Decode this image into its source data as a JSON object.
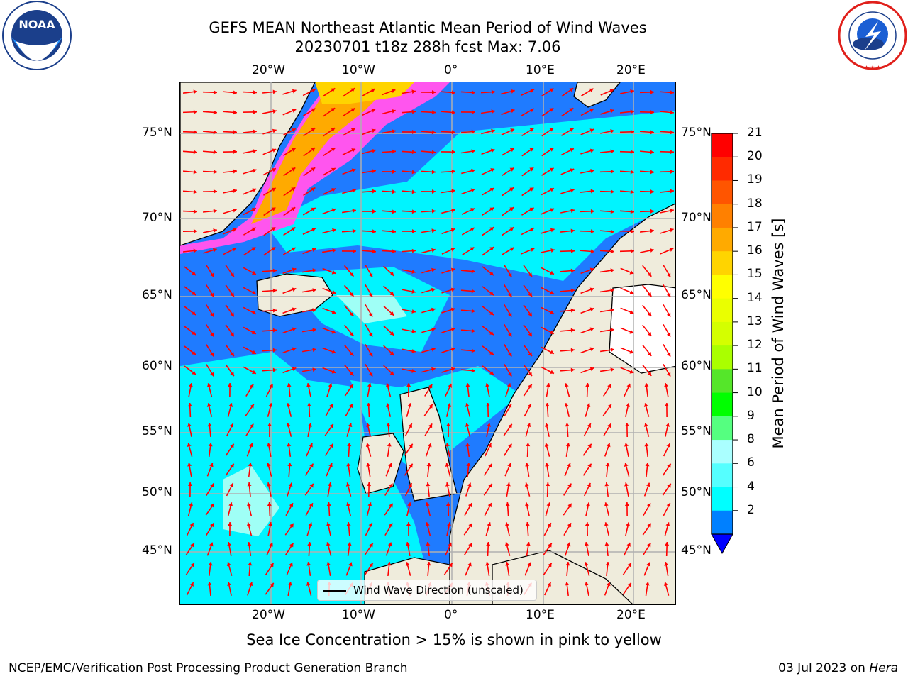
{
  "title": {
    "line1": "GEFS MEAN Northeast Atlantic Mean Period of Wind Waves",
    "line2": "20230701 t18z 288h fcst   Max: 7.06"
  },
  "logos": {
    "noaa_text": "NOAA",
    "noaa_ring": "NATIONAL OCEANIC AND ATMOSPHERIC ADMINISTRATION · U.S. DEPARTMENT OF COMMERCE",
    "nws_ring": "NATIONAL WEATHER SERVICE"
  },
  "map": {
    "lon_labels": [
      "20°W",
      "10°W",
      "0°",
      "10°E",
      "20°E"
    ],
    "lat_labels": [
      "75°N",
      "70°N",
      "65°N",
      "60°N",
      "55°N",
      "50°N",
      "45°N"
    ],
    "legend_text": "Wind Wave Direction (unscaled)",
    "colors": {
      "ocean_low": "#1f7bff",
      "ocean_mid": "#00f4ff",
      "ocean_high": "#9ffff6",
      "land": "#efecdc",
      "arrow": "#ff0000",
      "grid": "#b0b0b0"
    }
  },
  "colorbar": {
    "title": "Mean Period of Wind Waves [s]",
    "ticks": [
      "21",
      "20",
      "19",
      "18",
      "17",
      "16",
      "15",
      "14",
      "13",
      "12",
      "11",
      "10",
      "9",
      "8",
      "6",
      "4",
      "2"
    ],
    "colors": [
      "#ff0000",
      "#ff2a00",
      "#ff5500",
      "#ff8000",
      "#ffaa00",
      "#ffd400",
      "#ffff00",
      "#eaff00",
      "#d4ff00",
      "#aaff00",
      "#55e62a",
      "#00ff00",
      "#55ff80",
      "#aaffff",
      "#55ffff",
      "#00ffff",
      "#0080ff"
    ],
    "under_color": "#0000ff"
  },
  "caption": "Sea Ice Concentration > 15% is shown in pink to yellow",
  "footer": {
    "left": "NCEP/EMC/Verification Post Processing Product Generation Branch",
    "right_date": "03 Jul 2023 on ",
    "right_host": "Hera"
  }
}
